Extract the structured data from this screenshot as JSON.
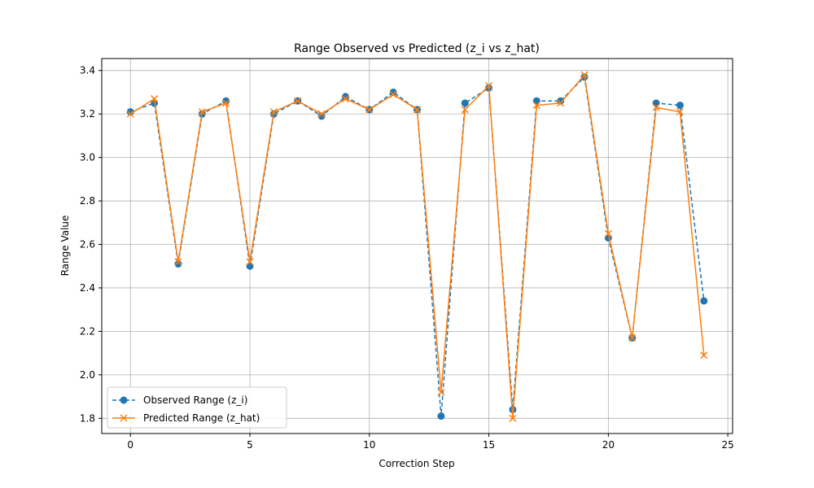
{
  "chart_data": {
    "type": "line",
    "title": "Range Observed vs Predicted (z_i vs z_hat)",
    "xlabel": "Correction Step",
    "ylabel": "Range Value",
    "xlim": [
      -1.2,
      25.2
    ],
    "ylim": [
      1.73,
      3.455
    ],
    "x_ticks": [
      0,
      5,
      10,
      15,
      20,
      25
    ],
    "y_ticks": [
      1.8,
      2.0,
      2.2,
      2.4,
      2.6,
      2.8,
      3.0,
      3.2,
      3.4
    ],
    "x_tick_labels": [
      "0",
      "5",
      "10",
      "15",
      "20",
      "25"
    ],
    "y_tick_labels": [
      "1.8",
      "2.0",
      "2.2",
      "2.4",
      "2.6",
      "2.8",
      "3.0",
      "3.2",
      "3.4"
    ],
    "grid": true,
    "legend_position": "lower-left",
    "x": [
      0,
      1,
      2,
      3,
      4,
      5,
      6,
      7,
      8,
      9,
      10,
      11,
      12,
      13,
      14,
      15,
      16,
      17,
      18,
      19,
      20,
      21,
      22,
      23,
      24
    ],
    "series": [
      {
        "name": "Observed Range (z_i)",
        "color": "#1f77b4",
        "line_style": "dashed",
        "marker": "circle",
        "values": [
          3.21,
          3.25,
          2.51,
          3.2,
          3.26,
          2.5,
          3.2,
          3.26,
          3.19,
          3.28,
          3.22,
          3.3,
          3.22,
          1.81,
          3.25,
          3.32,
          1.84,
          3.26,
          3.26,
          3.37,
          2.63,
          2.17,
          3.25,
          3.24,
          2.34
        ]
      },
      {
        "name": "Predicted Range (z_hat)",
        "color": "#ff7f0e",
        "line_style": "solid",
        "marker": "x",
        "values": [
          3.2,
          3.27,
          2.52,
          3.21,
          3.25,
          2.52,
          3.21,
          3.26,
          3.2,
          3.27,
          3.22,
          3.29,
          3.22,
          1.92,
          3.22,
          3.33,
          1.8,
          3.24,
          3.25,
          3.38,
          2.65,
          2.17,
          3.23,
          3.21,
          2.09
        ]
      }
    ]
  }
}
